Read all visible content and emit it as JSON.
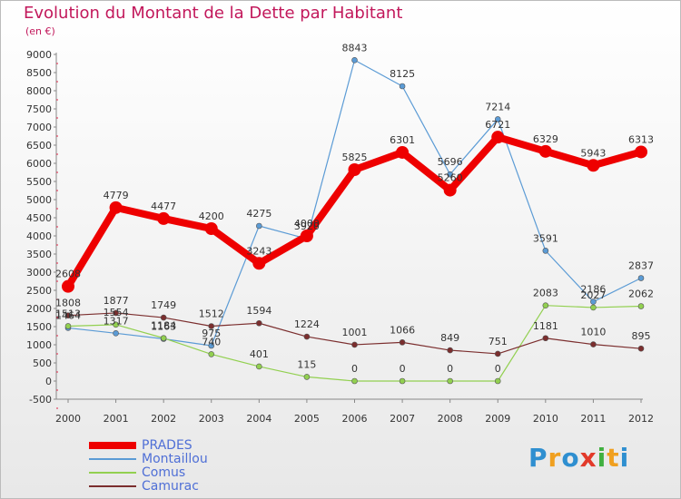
{
  "title": "Evolution du Montant de la Dette par Habitant",
  "unit": "(en €)",
  "logo": {
    "text": "Proxiti",
    "colors": [
      "#2f8fd0",
      "#f0a020",
      "#2f8fd0",
      "#e23a2a",
      "#40b040",
      "#f0a020",
      "#2f8fd0"
    ]
  },
  "chart_data": {
    "type": "line",
    "x": [
      "2000",
      "2001",
      "2002",
      "2003",
      "2004",
      "2005",
      "2006",
      "2007",
      "2008",
      "2009",
      "2010",
      "2011",
      "2012"
    ],
    "ylim": [
      -500,
      9000
    ],
    "yticks": [
      -500,
      0,
      500,
      1000,
      1500,
      2000,
      2500,
      3000,
      3500,
      4000,
      4500,
      5000,
      5500,
      6000,
      6500,
      7000,
      7500,
      8000,
      8500,
      9000
    ],
    "grid": false,
    "legend_position": "bottom-left",
    "series": [
      {
        "name": "PRADES",
        "color": "#ee0000",
        "values": [
          2608,
          4779,
          4477,
          4200,
          3243,
          4000,
          5825,
          6301,
          5260,
          6721,
          6329,
          5943,
          6313
        ],
        "labels": [
          "2608",
          "4779",
          "4477",
          "4200",
          "3243",
          "4000",
          "5825",
          "6301",
          "5260",
          "6721",
          "6329",
          "5943",
          "6313"
        ]
      },
      {
        "name": "Montaillou",
        "color": "#5b9bd5",
        "values": [
          1464,
          1317,
          1163,
          975,
          4275,
          3920,
          8843,
          8125,
          5696,
          7214,
          3591,
          2186,
          2837
        ],
        "labels": [
          "1464",
          "1317",
          "1163",
          "975",
          "4275",
          "3920",
          "8843",
          "8125",
          "5696",
          "7214",
          "3591",
          "2186",
          "2837"
        ]
      },
      {
        "name": "Comus",
        "color": "#92d050",
        "values": [
          1513,
          1554,
          1184,
          740,
          401,
          115,
          0,
          0,
          0,
          0,
          2083,
          2027,
          2062
        ],
        "labels": [
          "1513",
          "1554",
          "1184",
          "740",
          "401",
          "115",
          "0",
          "0",
          "0",
          "0",
          "2083",
          "2027",
          "2062"
        ]
      },
      {
        "name": "Camurac",
        "color": "#7b2e2e",
        "values": [
          1808,
          1877,
          1749,
          1512,
          1594,
          1224,
          1001,
          1066,
          849,
          751,
          1181,
          1010,
          895
        ],
        "labels": [
          "1808",
          "1877",
          "1749",
          "1512",
          "1594",
          "1224",
          "1001",
          "1066",
          "849",
          "751",
          "1181",
          "1010",
          "895"
        ]
      }
    ]
  }
}
